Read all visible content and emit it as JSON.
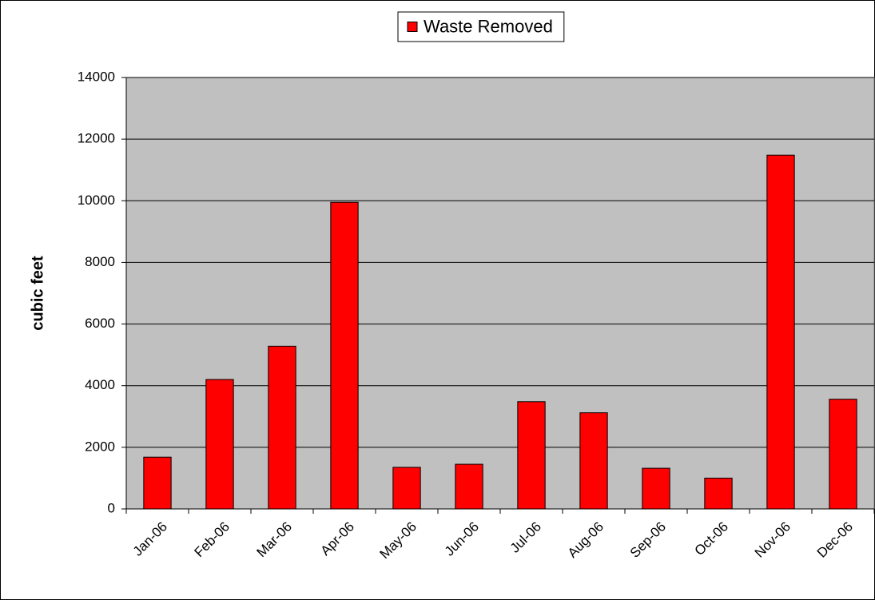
{
  "chart_data": {
    "type": "bar",
    "y_label": "cubic feet",
    "categories": [
      "Jan-06",
      "Feb-06",
      "Mar-06",
      "Apr-06",
      "May-06",
      "Jun-06",
      "Jul-06",
      "Aug-06",
      "Sep-06",
      "Oct-06",
      "Nov-06",
      "Dec-06"
    ],
    "series": [
      {
        "name": "Waste Removed",
        "color": "#ff0000",
        "values": [
          1680,
          4200,
          5280,
          9950,
          1350,
          1450,
          3480,
          3120,
          1320,
          1000,
          11480,
          3560
        ]
      }
    ],
    "ylim": [
      0,
      14000
    ],
    "yticks": [
      0,
      2000,
      4000,
      6000,
      8000,
      10000,
      12000,
      14000
    ],
    "grid": true,
    "legend": "top",
    "plot_background": "#c0c0c0"
  }
}
